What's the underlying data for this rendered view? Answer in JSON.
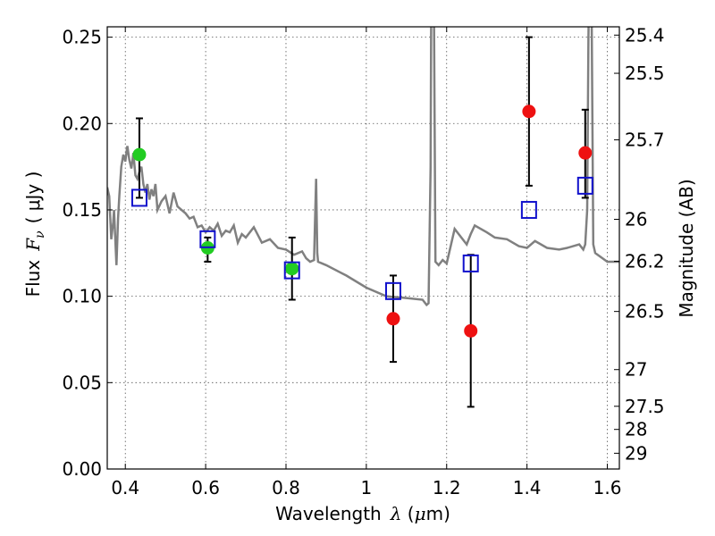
{
  "chart_data": {
    "type": "scatter",
    "xlabel": {
      "prefix": "Wavelength",
      "symbol": "λ",
      "units_open": " (",
      "units_mu": "μ",
      "units_rest": "m)"
    },
    "ylabel": {
      "prefix": "Flux",
      "symbol": "F",
      "subscript": "ν",
      "units": "( μJy )"
    },
    "y2label": "Magnitude (AB)",
    "xlim": [
      0.355,
      1.63
    ],
    "ylim": [
      0.0,
      0.256
    ],
    "xticks": [
      {
        "value": 0.4,
        "label": "0.4"
      },
      {
        "value": 0.6,
        "label": "0.6"
      },
      {
        "value": 0.8,
        "label": "0.8"
      },
      {
        "value": 1.0,
        "label": "1"
      },
      {
        "value": 1.2,
        "label": "1.2"
      },
      {
        "value": 1.4,
        "label": "1.4"
      },
      {
        "value": 1.6,
        "label": "1.6"
      }
    ],
    "yticks": [
      {
        "value": 0.0,
        "label": "0.00"
      },
      {
        "value": 0.05,
        "label": "0.05"
      },
      {
        "value": 0.1,
        "label": "0.10"
      },
      {
        "value": 0.15,
        "label": "0.15"
      },
      {
        "value": 0.2,
        "label": "0.20"
      },
      {
        "value": 0.25,
        "label": "0.25"
      }
    ],
    "y2ticks": [
      {
        "value": 25.4,
        "label": "25.4"
      },
      {
        "value": 25.5,
        "label": "25.5"
      },
      {
        "value": 25.7,
        "label": "25.7"
      },
      {
        "value": 26.0,
        "label": "26"
      },
      {
        "value": 26.2,
        "label": "26.2"
      },
      {
        "value": 26.5,
        "label": "26.5"
      },
      {
        "value": 27.0,
        "label": "27"
      },
      {
        "value": 27.5,
        "label": "27.5"
      },
      {
        "value": 28.0,
        "label": "28"
      },
      {
        "value": 29.0,
        "label": "29"
      }
    ],
    "grid": true,
    "colors": {
      "model": "#808080",
      "green": "#22cc22",
      "red": "#ee1111",
      "box": "#1111cc",
      "errorbar": "#000000"
    },
    "series": [
      {
        "type": "line",
        "color": "#808080",
        "x": [
          0.355,
          0.36,
          0.365,
          0.37,
          0.372,
          0.375,
          0.378,
          0.382,
          0.385,
          0.39,
          0.395,
          0.4,
          0.405,
          0.41,
          0.415,
          0.42,
          0.425,
          0.43,
          0.435,
          0.44,
          0.445,
          0.45,
          0.455,
          0.46,
          0.465,
          0.47,
          0.475,
          0.48,
          0.49,
          0.5,
          0.51,
          0.52,
          0.53,
          0.54,
          0.55,
          0.56,
          0.57,
          0.58,
          0.59,
          0.6,
          0.61,
          0.62,
          0.63,
          0.64,
          0.65,
          0.66,
          0.67,
          0.68,
          0.69,
          0.7,
          0.72,
          0.74,
          0.76,
          0.78,
          0.8,
          0.82,
          0.84,
          0.85,
          0.86,
          0.87,
          0.872,
          0.875,
          0.878,
          0.88,
          0.9,
          0.95,
          1.0,
          1.05,
          1.1,
          1.14,
          1.15,
          1.155,
          1.16,
          1.162,
          1.165,
          1.168,
          1.172,
          1.18,
          1.19,
          1.2,
          1.22,
          1.25,
          1.26,
          1.27,
          1.3,
          1.32,
          1.35,
          1.38,
          1.4,
          1.42,
          1.45,
          1.48,
          1.5,
          1.53,
          1.54,
          1.545,
          1.55,
          1.553,
          1.556,
          1.56,
          1.565,
          1.57,
          1.6,
          1.63
        ],
        "y": [
          0.163,
          0.158,
          0.133,
          0.143,
          0.15,
          0.133,
          0.118,
          0.145,
          0.158,
          0.175,
          0.182,
          0.178,
          0.187,
          0.179,
          0.174,
          0.183,
          0.17,
          0.168,
          0.172,
          0.175,
          0.165,
          0.16,
          0.165,
          0.156,
          0.162,
          0.158,
          0.165,
          0.15,
          0.155,
          0.158,
          0.148,
          0.16,
          0.152,
          0.15,
          0.148,
          0.145,
          0.146,
          0.14,
          0.141,
          0.137,
          0.14,
          0.138,
          0.142,
          0.135,
          0.138,
          0.137,
          0.141,
          0.131,
          0.136,
          0.134,
          0.14,
          0.131,
          0.133,
          0.128,
          0.127,
          0.124,
          0.126,
          0.122,
          0.12,
          0.121,
          0.14,
          0.168,
          0.125,
          0.12,
          0.118,
          0.112,
          0.105,
          0.1,
          0.099,
          0.098,
          0.095,
          0.096,
          0.175,
          0.3,
          0.3,
          0.28,
          0.12,
          0.118,
          0.121,
          0.119,
          0.139,
          0.13,
          0.136,
          0.141,
          0.137,
          0.134,
          0.133,
          0.129,
          0.128,
          0.132,
          0.128,
          0.127,
          0.128,
          0.13,
          0.127,
          0.13,
          0.15,
          0.25,
          0.3,
          0.3,
          0.13,
          0.125,
          0.12,
          0.12
        ]
      },
      {
        "type": "scatter",
        "marker": "circle",
        "color": "#22cc22",
        "x": [
          0.435,
          0.605,
          0.815
        ],
        "y": [
          0.182,
          0.128,
          0.116
        ],
        "yerr_low": [
          0.157,
          0.12,
          0.098
        ],
        "yerr_high": [
          0.203,
          0.134,
          0.134
        ]
      },
      {
        "type": "scatter",
        "marker": "circle",
        "color": "#ee1111",
        "x": [
          1.067,
          1.26,
          1.405,
          1.545
        ],
        "y": [
          0.087,
          0.08,
          0.207,
          0.183
        ],
        "yerr_low": [
          0.062,
          0.036,
          0.164,
          0.157
        ],
        "yerr_high": [
          0.112,
          0.124,
          0.25,
          0.208
        ]
      },
      {
        "type": "scatter",
        "marker": "open-square",
        "color": "#1111cc",
        "x": [
          0.435,
          0.605,
          0.815,
          1.067,
          1.26,
          1.405,
          1.545
        ],
        "y": [
          0.157,
          0.133,
          0.115,
          0.103,
          0.119,
          0.15,
          0.164
        ]
      }
    ]
  }
}
